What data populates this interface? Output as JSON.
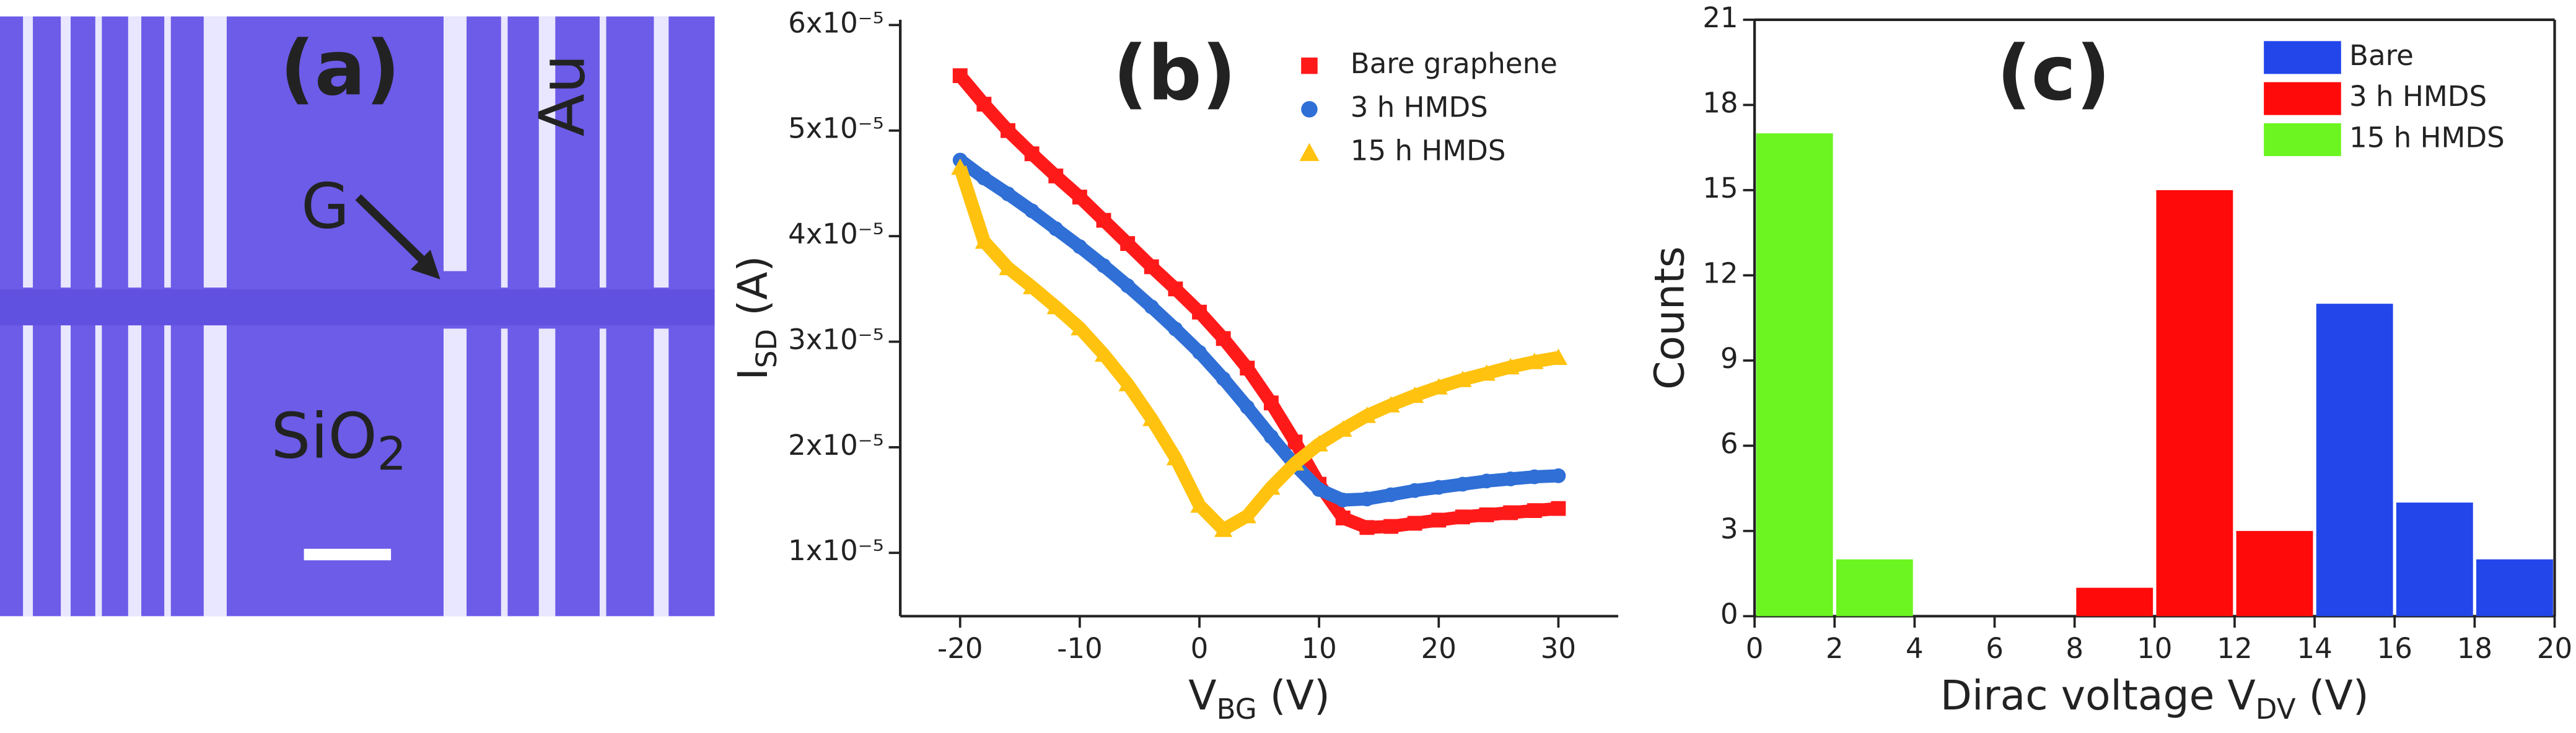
{
  "image_panel": {
    "label": "(a)",
    "annotations": {
      "au": "Au",
      "g": "G",
      "sio2": [
        "SiO",
        "2"
      ]
    }
  },
  "chart_data": [
    {
      "type": "line",
      "label": "(b)",
      "x": [
        -20,
        -18,
        -16,
        -14,
        -12,
        -10,
        -8,
        -6,
        -4,
        -2,
        0,
        2,
        4,
        6,
        8,
        10,
        12,
        14,
        16,
        18,
        20,
        22,
        24,
        26,
        28,
        30
      ],
      "series": [
        {
          "name": "Bare graphene",
          "color": "#ff1a1a",
          "marker": "square",
          "values": [
            5.52e-05,
            5.25e-05,
            5e-05,
            4.78e-05,
            4.57e-05,
            4.37e-05,
            4.15e-05,
            3.93e-05,
            3.71e-05,
            3.5e-05,
            3.28e-05,
            3.03e-05,
            2.75e-05,
            2.42e-05,
            2.05e-05,
            1.65e-05,
            1.33e-05,
            1.24e-05,
            1.25e-05,
            1.28e-05,
            1.31e-05,
            1.34e-05,
            1.36e-05,
            1.38e-05,
            1.4e-05,
            1.42e-05
          ]
        },
        {
          "name": "3 h HMDS",
          "color": "#2f6fd6",
          "marker": "circle",
          "values": [
            4.72e-05,
            4.55e-05,
            4.4e-05,
            4.24e-05,
            4.07e-05,
            3.9e-05,
            3.72e-05,
            3.53e-05,
            3.33e-05,
            3.12e-05,
            2.9e-05,
            2.65e-05,
            2.38e-05,
            2.1e-05,
            1.83e-05,
            1.6e-05,
            1.5e-05,
            1.51e-05,
            1.55e-05,
            1.59e-05,
            1.62e-05,
            1.65e-05,
            1.68e-05,
            1.7e-05,
            1.72e-05,
            1.73e-05
          ]
        },
        {
          "name": "15 h HMDS",
          "color": "#ffc20e",
          "marker": "triangle",
          "values": [
            4.65e-05,
            3.95e-05,
            3.7e-05,
            3.52e-05,
            3.33e-05,
            3.13e-05,
            2.88e-05,
            2.6e-05,
            2.27e-05,
            1.9e-05,
            1.45e-05,
            1.22e-05,
            1.35e-05,
            1.62e-05,
            1.85e-05,
            2.03e-05,
            2.17e-05,
            2.3e-05,
            2.4e-05,
            2.49e-05,
            2.57e-05,
            2.64e-05,
            2.7e-05,
            2.76e-05,
            2.81e-05,
            2.85e-05
          ]
        }
      ],
      "xlim": [
        -25,
        35
      ],
      "xticks": [
        -20,
        -10,
        0,
        10,
        20,
        30
      ],
      "ylim": [
        4e-06,
        6.05e-05
      ],
      "yticks": [
        {
          "value": 1e-05,
          "label": "1x10⁻⁵"
        },
        {
          "value": 2e-05,
          "label": "2x10⁻⁵"
        },
        {
          "value": 3e-05,
          "label": "3x10⁻⁵"
        },
        {
          "value": 4e-05,
          "label": "4x10⁻⁵"
        },
        {
          "value": 5e-05,
          "label": "5x10⁻⁵"
        },
        {
          "value": 6e-05,
          "label": "6x10⁻⁵"
        }
      ],
      "x_label": [
        "V",
        "BG",
        " (V)"
      ],
      "y_label": [
        "I",
        "SD",
        " (A)"
      ],
      "legend": "upper right",
      "frame": "open"
    },
    {
      "type": "histogram",
      "label": "(c)",
      "bins": [
        0,
        2,
        4,
        6,
        8,
        10,
        12,
        14,
        16,
        18,
        20
      ],
      "series": [
        {
          "name": "Bare",
          "color": "#2346ea",
          "values": [
            0,
            0,
            0,
            0,
            0,
            0,
            0,
            11,
            4,
            2
          ]
        },
        {
          "name": "3 h HMDS",
          "color": "#ff0a0a",
          "values": [
            0,
            0,
            0,
            0,
            1,
            15,
            3,
            0,
            0,
            0
          ]
        },
        {
          "name": "15 h HMDS",
          "color": "#6cf520",
          "values": [
            17,
            2,
            0,
            0,
            0,
            0,
            0,
            0,
            0,
            0
          ]
        }
      ],
      "xlim": [
        0,
        20
      ],
      "xticks": [
        0,
        2,
        4,
        6,
        8,
        10,
        12,
        14,
        16,
        18,
        20
      ],
      "ylim": [
        0,
        21
      ],
      "yticks": [
        0,
        3,
        6,
        9,
        12,
        15,
        18,
        21
      ],
      "x_label": [
        "Dirac voltage V",
        "DV",
        " (V)"
      ],
      "y_label": "Counts",
      "legend": "upper right",
      "frame": "box"
    }
  ]
}
